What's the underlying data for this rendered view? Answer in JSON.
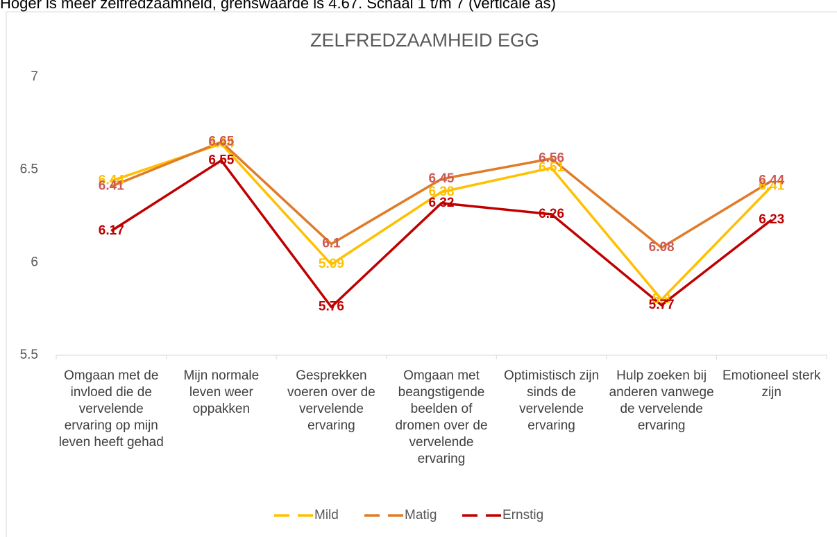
{
  "chart_data": {
    "type": "line",
    "note": "Hoger is meer zelfredzaamheid, grenswaarde is 4.67. Schaal 1 t/m 7 (verticale as)",
    "title": "ZELFREDZAAMHEID EGG",
    "categories": [
      "Omgaan met de invloed die de vervelende ervaring op mijn leven heeft gehad",
      "Mijn normale leven weer oppakken",
      "Gesprekken voeren over de vervelende ervaring",
      "Omgaan met beangstigende beelden of dromen over de vervelende ervaring",
      "Optimistisch zijn sinds de vervelende ervaring",
      "Hulp zoeken bij anderen vanwege de vervelende ervaring",
      "Emotioneel sterk zijn"
    ],
    "series": [
      {
        "name": "Mild",
        "color": "#FFC000",
        "label_color": "#FFC000",
        "values": [
          6.44,
          6.64,
          5.99,
          6.38,
          6.51,
          5.8,
          6.41
        ]
      },
      {
        "name": "Matig",
        "color": "#E07B28",
        "label_color": "#CC5A56",
        "values": [
          6.41,
          6.65,
          6.1,
          6.45,
          6.56,
          6.08,
          6.44
        ]
      },
      {
        "name": "Ernstig",
        "color": "#C00000",
        "label_color": "#C00000",
        "values": [
          6.17,
          6.55,
          5.76,
          6.32,
          6.26,
          5.77,
          6.23
        ]
      }
    ],
    "ylim": [
      5.5,
      7
    ],
    "yticks": [
      5.5,
      6,
      6.5,
      7
    ],
    "grid": false,
    "legend": "bottom"
  }
}
